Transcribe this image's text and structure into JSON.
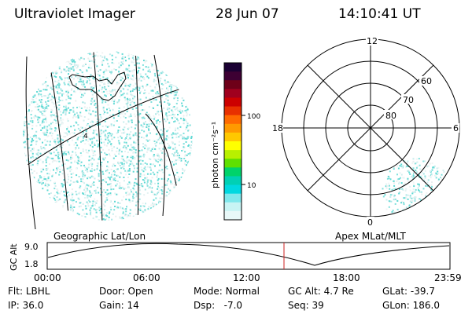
{
  "header": {
    "title": "Ultraviolet Imager",
    "date": "28 Jun 07",
    "time": "14:10:41 UT"
  },
  "geo_panel": {
    "label": "Geographic Lat/Lon",
    "station_marker": "4"
  },
  "colorbar": {
    "unit_label": "photon cm⁻²s⁻¹",
    "tick_labels": [
      "100",
      "10"
    ],
    "colors": [
      "#1a0033",
      "#3d0033",
      "#6e0019",
      "#a0001e",
      "#cc0000",
      "#e83000",
      "#ff6a00",
      "#ff9a00",
      "#ffc800",
      "#ffff00",
      "#b8f000",
      "#5fe000",
      "#00d36a",
      "#00d0b4",
      "#00d8e0",
      "#7fe8ec",
      "#c8f4f4",
      "#e8f8f8"
    ]
  },
  "apex_panel": {
    "label": "Apex  MLat/MLT",
    "mlt_labels": {
      "top": "12",
      "left": "18",
      "right": "6",
      "bottom": "0"
    },
    "lat_labels": [
      "60",
      "70",
      "80"
    ]
  },
  "altitude_plot": {
    "ylabel": "GC Alt",
    "y_ticks": [
      "9.0",
      "1.8"
    ],
    "x_ticks": [
      "00:00",
      "06:00",
      "12:00",
      "18:00",
      "23:59"
    ],
    "current_time_marker": "14:10:41",
    "marker_color": "#cc2222"
  },
  "info": {
    "row1": [
      {
        "key": "Flt:",
        "value": "LBHL"
      },
      {
        "key": "Door:",
        "value": "Open"
      },
      {
        "key": "Mode:",
        "value": "Normal"
      },
      {
        "key": "GC Alt:",
        "value": "4.7 Re"
      },
      {
        "key": "GLat:",
        "value": "-39.7"
      }
    ],
    "row2": [
      {
        "key": "IP:",
        "value": "36.0"
      },
      {
        "key": "Gain:",
        "value": "14"
      },
      {
        "key": "Dsp:",
        "value": "  -7.0"
      },
      {
        "key": "Seq:",
        "value": "39"
      },
      {
        "key": "GLon:",
        "value": "186.0"
      }
    ]
  }
}
